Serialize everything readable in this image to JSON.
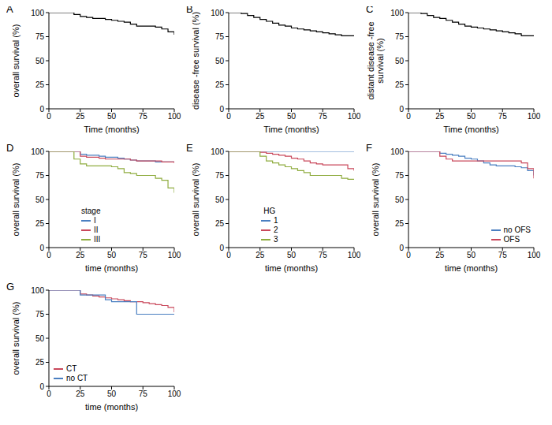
{
  "chart_data": [
    {
      "type": "step",
      "title": "A",
      "x_label": "Time (months)",
      "y_label": "overall survival (%)",
      "x": [
        0,
        5,
        10,
        15,
        20,
        25,
        30,
        35,
        40,
        45,
        50,
        55,
        60,
        65,
        70,
        75,
        80,
        85,
        90,
        95,
        100
      ],
      "xlim": [
        0,
        100
      ],
      "xticks": [
        0,
        25,
        50,
        75,
        100
      ],
      "ylim": [
        0,
        100
      ],
      "yticks": [
        0,
        25,
        50,
        75,
        100
      ],
      "grid": false,
      "series": [
        {
          "color": "#000000",
          "values": [
            100,
            100,
            100,
            100,
            98,
            96,
            95,
            94,
            94,
            93,
            92,
            91,
            90,
            88,
            86,
            86,
            86,
            85,
            83,
            80,
            77
          ]
        }
      ]
    },
    {
      "type": "step",
      "title": "B",
      "x_label": "Time (months)",
      "y_label": "disease -free survival (%)",
      "x": [
        0,
        5,
        10,
        15,
        20,
        25,
        30,
        35,
        40,
        45,
        50,
        55,
        60,
        65,
        70,
        75,
        80,
        85,
        90,
        95,
        100
      ],
      "xlim": [
        0,
        100
      ],
      "xticks": [
        0,
        25,
        50,
        75,
        100
      ],
      "ylim": [
        0,
        100
      ],
      "yticks": [
        0,
        25,
        50,
        75,
        100
      ],
      "grid": false,
      "series": [
        {
          "color": "#000000",
          "values": [
            100,
            100,
            99,
            97,
            95,
            93,
            91,
            89,
            87,
            86,
            84,
            83,
            82,
            81,
            80,
            79,
            78,
            77,
            76,
            76,
            76
          ]
        }
      ]
    },
    {
      "type": "step",
      "title": "C",
      "x_label": "Time (months)",
      "y_label": "distant disease -free survival (%)",
      "x": [
        0,
        5,
        10,
        15,
        20,
        25,
        30,
        35,
        40,
        45,
        50,
        55,
        60,
        65,
        70,
        75,
        80,
        85,
        90,
        95,
        100
      ],
      "xlim": [
        0,
        100
      ],
      "xticks": [
        0,
        25,
        50,
        75,
        100
      ],
      "ylim": [
        0,
        100
      ],
      "yticks": [
        0,
        25,
        50,
        75,
        100
      ],
      "grid": false,
      "series": [
        {
          "color": "#000000",
          "values": [
            100,
            100,
            99,
            97,
            95,
            94,
            92,
            90,
            88,
            86,
            85,
            84,
            83,
            82,
            81,
            80,
            79,
            78,
            76,
            76,
            76
          ]
        }
      ]
    },
    {
      "type": "step",
      "title": "D",
      "x_label": "time (months)",
      "y_label": "overall survival (%)",
      "x": [
        0,
        5,
        10,
        15,
        20,
        25,
        30,
        35,
        40,
        45,
        50,
        55,
        60,
        65,
        70,
        75,
        80,
        85,
        90,
        95,
        100
      ],
      "xlim": [
        0,
        100
      ],
      "xticks": [
        0,
        25,
        50,
        75,
        100
      ],
      "ylim": [
        0,
        100
      ],
      "yticks": [
        0,
        25,
        50,
        75,
        100
      ],
      "grid": false,
      "legend": "lower center",
      "legend_title": "stage",
      "series": [
        {
          "name": "I",
          "color": "#4a7fc1",
          "values": [
            100,
            100,
            100,
            100,
            100,
            97,
            96,
            96,
            95,
            94,
            94,
            93,
            92,
            91,
            90,
            90,
            90,
            89,
            89,
            89,
            89
          ]
        },
        {
          "name": "II",
          "color": "#c9485b",
          "values": [
            100,
            100,
            100,
            100,
            100,
            95,
            94,
            94,
            93,
            92,
            92,
            92,
            92,
            91,
            90,
            90,
            90,
            90,
            89,
            89,
            88
          ]
        },
        {
          "name": "III",
          "color": "#8fac3f",
          "values": [
            100,
            100,
            100,
            100,
            92,
            87,
            85,
            85,
            85,
            85,
            84,
            82,
            78,
            77,
            75,
            75,
            75,
            72,
            70,
            62,
            57
          ]
        }
      ]
    },
    {
      "type": "step",
      "title": "E",
      "x_label": "time (months)",
      "y_label": "overall survival (%)",
      "x": [
        0,
        5,
        10,
        15,
        20,
        25,
        30,
        35,
        40,
        45,
        50,
        55,
        60,
        65,
        70,
        75,
        80,
        85,
        90,
        95,
        100
      ],
      "xlim": [
        0,
        100
      ],
      "xticks": [
        0,
        25,
        50,
        75,
        100
      ],
      "ylim": [
        0,
        100
      ],
      "yticks": [
        0,
        25,
        50,
        75,
        100
      ],
      "grid": false,
      "legend": "lower center",
      "legend_title": "HG",
      "series": [
        {
          "name": "1",
          "color": "#4a7fc1",
          "values": [
            100,
            100,
            100,
            100,
            100,
            100,
            100,
            100,
            100,
            100,
            100,
            100,
            100,
            100,
            100,
            100,
            100,
            100,
            100,
            100,
            100
          ]
        },
        {
          "name": "2",
          "color": "#c9485b",
          "values": [
            100,
            100,
            100,
            100,
            100,
            99,
            98,
            97,
            96,
            95,
            93,
            92,
            90,
            88,
            87,
            86,
            86,
            86,
            86,
            82,
            80
          ]
        },
        {
          "name": "3",
          "color": "#8fac3f",
          "values": [
            100,
            100,
            100,
            100,
            100,
            95,
            90,
            88,
            86,
            84,
            82,
            80,
            78,
            75,
            75,
            75,
            75,
            75,
            72,
            71,
            71
          ]
        }
      ]
    },
    {
      "type": "step",
      "title": "F",
      "x_label": "time (months)",
      "y_label": "overall survival (%)",
      "x": [
        0,
        5,
        10,
        15,
        20,
        25,
        30,
        35,
        40,
        45,
        50,
        55,
        60,
        65,
        70,
        75,
        80,
        85,
        90,
        95,
        100
      ],
      "xlim": [
        0,
        100
      ],
      "xticks": [
        0,
        25,
        50,
        75,
        100
      ],
      "ylim": [
        0,
        100
      ],
      "yticks": [
        0,
        25,
        50,
        75,
        100
      ],
      "grid": false,
      "legend": "lower right",
      "series": [
        {
          "name": "no OFS",
          "color": "#4a7fc1",
          "values": [
            100,
            100,
            100,
            100,
            100,
            98,
            97,
            96,
            95,
            93,
            92,
            90,
            88,
            86,
            85,
            85,
            85,
            84,
            83,
            80,
            75
          ]
        },
        {
          "name": "OFS",
          "color": "#c9485b",
          "values": [
            100,
            100,
            100,
            100,
            100,
            95,
            92,
            90,
            90,
            90,
            90,
            90,
            90,
            90,
            90,
            90,
            90,
            90,
            88,
            82,
            72
          ]
        }
      ]
    },
    {
      "type": "step",
      "title": "G",
      "x_label": "time (months)",
      "y_label": "overall survival (%)",
      "x": [
        0,
        5,
        10,
        15,
        20,
        25,
        30,
        35,
        40,
        45,
        50,
        55,
        60,
        65,
        70,
        75,
        80,
        85,
        90,
        95,
        100
      ],
      "xlim": [
        0,
        100
      ],
      "xticks": [
        0,
        25,
        50,
        75,
        100
      ],
      "ylim": [
        0,
        100
      ],
      "yticks": [
        0,
        25,
        50,
        75,
        100
      ],
      "grid": false,
      "legend": "lower left",
      "series": [
        {
          "name": "CT",
          "color": "#c9485b",
          "values": [
            100,
            100,
            100,
            100,
            100,
            96,
            95,
            94,
            93,
            92,
            91,
            90,
            89,
            88,
            88,
            87,
            86,
            85,
            84,
            82,
            77
          ]
        },
        {
          "name": "no CT",
          "color": "#4a7fc1",
          "values": [
            100,
            100,
            100,
            100,
            100,
            95,
            95,
            95,
            95,
            90,
            88,
            88,
            88,
            88,
            75,
            75,
            75,
            75,
            75,
            75,
            75
          ]
        }
      ]
    }
  ]
}
